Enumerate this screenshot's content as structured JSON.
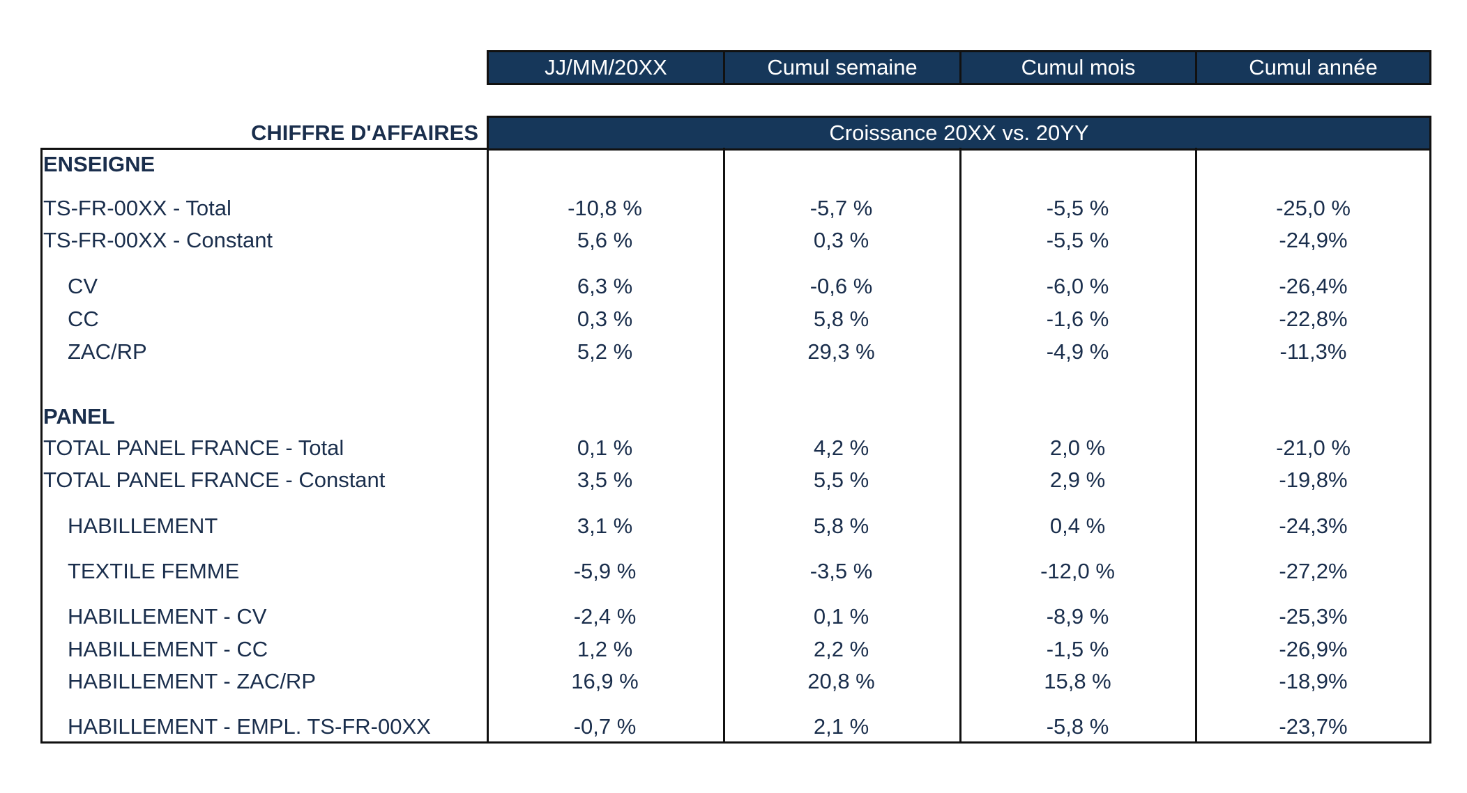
{
  "columns": [
    "JJ/MM/20XX",
    "Cumul semaine",
    "Cumul mois",
    "Cumul année"
  ],
  "section_title": "CHIFFRE D'AFFAIRES",
  "growth_header": "Croissance 20XX vs. 20YY",
  "rows": [
    {
      "label": "ENSEIGNE",
      "section": true,
      "values": []
    },
    {
      "label": "TS-FR-00XX - Total",
      "values": [
        "-10,8 %",
        "-5,7 %",
        "-5,5 %",
        "-25,0 %"
      ]
    },
    {
      "label": "TS-FR-00XX - Constant",
      "values": [
        "5,6 %",
        "0,3 %",
        "-5,5 %",
        "-24,9%"
      ]
    },
    {
      "label": "CV",
      "indent": true,
      "values": [
        "6,3 %",
        "-0,6 %",
        "-6,0 %",
        "-26,4%"
      ]
    },
    {
      "label": "CC",
      "indent": true,
      "values": [
        "0,3 %",
        "5,8 %",
        "-1,6 %",
        "-22,8%"
      ]
    },
    {
      "label": "ZAC/RP",
      "indent": true,
      "values": [
        "5,2 %",
        "29,3 %",
        "-4,9 %",
        "-11,3%"
      ]
    },
    {
      "label": "PANEL",
      "section": true,
      "values": []
    },
    {
      "label": "TOTAL PANEL FRANCE - Total",
      "values": [
        "0,1 %",
        "4,2 %",
        "2,0 %",
        "-21,0 %"
      ]
    },
    {
      "label": "TOTAL PANEL FRANCE - Constant",
      "values": [
        "3,5 %",
        "5,5 %",
        "2,9 %",
        "-19,8%"
      ]
    },
    {
      "label": "HABILLEMENT",
      "indent": true,
      "values": [
        "3,1 %",
        "5,8 %",
        "0,4 %",
        "-24,3%"
      ]
    },
    {
      "label": "TEXTILE FEMME",
      "indent": true,
      "values": [
        "-5,9 %",
        "-3,5 %",
        "-12,0 %",
        "-27,2%"
      ]
    },
    {
      "label": "HABILLEMENT - CV",
      "indent": true,
      "values": [
        "-2,4 %",
        "0,1 %",
        "-8,9 %",
        "-25,3%"
      ]
    },
    {
      "label": "HABILLEMENT - CC",
      "indent": true,
      "values": [
        "1,2 %",
        "2,2 %",
        "-1,5 %",
        "-26,9%"
      ]
    },
    {
      "label": "HABILLEMENT - ZAC/RP",
      "indent": true,
      "values": [
        "16,9 %",
        "20,8 %",
        "15,8 %",
        "-18,9%"
      ]
    },
    {
      "label": "HABILLEMENT - EMPL. TS-FR-00XX",
      "indent": true,
      "values": [
        "-0,7 %",
        "2,1 %",
        "-5,8 %",
        "-23,7%"
      ]
    }
  ]
}
